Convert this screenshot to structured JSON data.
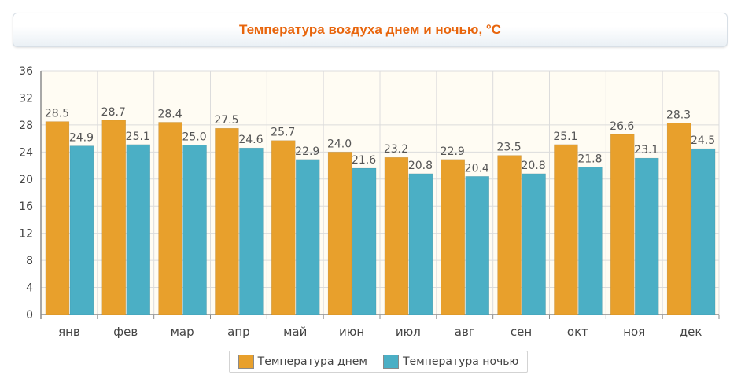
{
  "chart_data": {
    "type": "bar",
    "title": "Температура воздуха днем и ночью, °C",
    "categories": [
      "янв",
      "фев",
      "мар",
      "апр",
      "май",
      "июн",
      "июл",
      "авг",
      "сен",
      "окт",
      "ноя",
      "дек"
    ],
    "series": [
      {
        "name": "Температура днем",
        "color": "#e8a02c",
        "values": [
          28.5,
          28.7,
          28.4,
          27.5,
          25.7,
          24.0,
          23.2,
          22.9,
          23.5,
          25.1,
          26.6,
          28.3
        ]
      },
      {
        "name": "Температура ночью",
        "color": "#4bafc5",
        "values": [
          24.9,
          25.1,
          25.0,
          24.6,
          22.9,
          21.6,
          20.8,
          20.4,
          20.8,
          21.8,
          23.1,
          24.5
        ]
      }
    ],
    "ylim": [
      0,
      36
    ],
    "yticks": [
      0,
      4,
      8,
      12,
      16,
      20,
      24,
      28,
      32,
      36
    ],
    "value_labels": [
      [
        "28.5",
        "28.7",
        "28.4",
        "27.5",
        "25.7",
        "24.0",
        "23.2",
        "22.9",
        "23.5",
        "25.1",
        "26.6",
        "28.3"
      ],
      [
        "24.9",
        "25.1",
        "25.0",
        "24.6",
        "22.9",
        "21.6",
        "20.8",
        "20.4",
        "20.8",
        "21.8",
        "23.1",
        "24.5"
      ]
    ],
    "grid": true,
    "legend_position": "bottom-center"
  }
}
